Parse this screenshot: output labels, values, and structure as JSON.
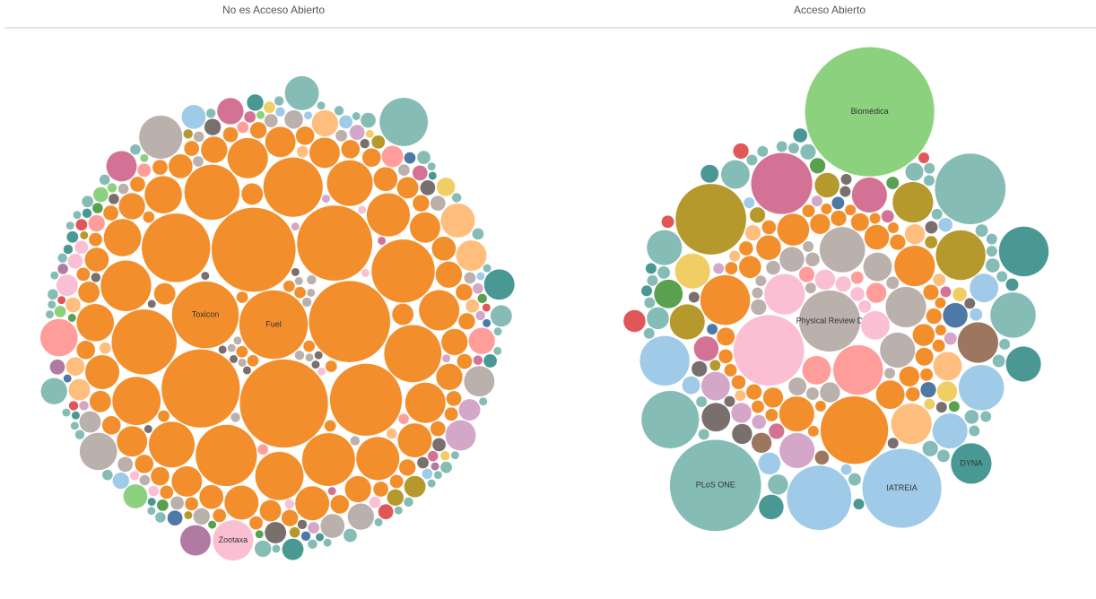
{
  "chart_data": [
    {
      "type": "bubble",
      "title": "No es Acceso Abierto",
      "series": [
        {
          "color": "#f28e2b",
          "categories": [
            "Fuel",
            "Toxicon"
          ],
          "values": [
            200,
            190
          ]
        },
        {
          "color": "#f28e2b",
          "values": [
            330,
            300,
            280,
            260,
            240,
            220,
            200,
            180,
            170,
            160,
            150,
            140,
            130,
            120,
            110,
            100,
            100,
            90,
            90,
            80,
            80,
            70,
            70,
            70,
            60,
            60,
            60,
            50,
            50,
            50,
            50,
            40,
            40,
            40,
            40,
            40,
            30,
            30,
            30,
            30,
            30,
            30,
            25,
            25,
            25,
            25,
            25,
            20,
            20,
            20,
            20,
            20,
            20,
            20,
            15,
            15,
            15,
            15,
            15,
            15,
            15,
            15,
            12,
            12,
            12,
            12,
            12,
            12,
            10,
            10,
            10,
            10,
            10,
            10,
            10,
            10,
            10,
            8,
            8,
            8,
            8,
            8,
            8,
            8,
            8,
            6,
            6,
            6,
            6,
            6,
            6,
            6,
            6,
            6,
            6
          ]
        },
        {
          "color": "#ffbe7d",
          "values": [
            50,
            40,
            30,
            20,
            15,
            10,
            8,
            6,
            6,
            5
          ]
        },
        {
          "color": "#ff9d9a",
          "values": [
            60,
            30,
            20,
            12,
            8,
            6,
            5,
            5
          ]
        },
        {
          "color": "#bab0ac",
          "values": [
            80,
            60,
            40,
            30,
            25,
            20,
            15,
            12,
            10,
            10,
            8,
            8,
            6,
            6,
            6,
            5,
            5,
            5,
            5,
            4,
            4,
            4,
            4,
            4,
            3,
            3,
            3,
            3,
            3,
            3
          ]
        },
        {
          "color": "#79706e",
          "values": [
            20,
            12,
            10,
            8,
            6,
            5,
            4,
            4,
            4,
            3,
            3,
            3,
            3,
            3,
            3,
            3,
            3,
            3
          ]
        },
        {
          "color": "#fabfd2",
          "categories": [
            "Zootaxa"
          ],
          "values": [
            70
          ]
        },
        {
          "color": "#fabfd2",
          "values": [
            20,
            10,
            8,
            6,
            5,
            4,
            4,
            3,
            3,
            3
          ]
        },
        {
          "color": "#d4a6c8",
          "values": [
            40,
            20,
            10,
            6,
            5,
            4,
            4,
            3,
            3,
            3
          ]
        },
        {
          "color": "#d37295",
          "values": [
            40,
            30,
            10,
            6,
            5,
            4,
            3,
            3
          ]
        },
        {
          "color": "#b6992d",
          "values": [
            20,
            12,
            8,
            5,
            4,
            3,
            3
          ]
        },
        {
          "color": "#59a14f",
          "values": [
            6,
            5,
            4,
            3,
            3,
            3
          ]
        },
        {
          "color": "#8cd17d",
          "values": [
            25,
            10,
            6,
            4,
            3,
            3
          ]
        },
        {
          "color": "#a0cbe8",
          "values": [
            25,
            12,
            8,
            5,
            4,
            3,
            3
          ]
        },
        {
          "color": "#4e79a7",
          "values": [
            10,
            6,
            4,
            3,
            3
          ]
        },
        {
          "color": "#e15759",
          "values": [
            10,
            6,
            4,
            3,
            3
          ]
        },
        {
          "color": "#f1ce63",
          "values": [
            15,
            6,
            4,
            3
          ]
        },
        {
          "color": "#b07aa1",
          "values": [
            40,
            10,
            5,
            3
          ]
        },
        {
          "color": "#499894",
          "values": [
            40,
            20,
            12,
            8,
            6,
            4,
            4,
            3,
            3,
            3,
            3
          ]
        },
        {
          "color": "#86bcb6",
          "values": [
            100,
            50,
            30,
            20,
            12,
            10,
            8,
            8,
            6,
            6,
            6,
            5,
            5,
            5,
            5,
            5,
            4,
            4,
            4,
            4,
            4,
            4,
            4,
            4,
            3,
            3,
            3,
            3,
            3,
            3,
            3,
            3,
            3,
            3,
            3,
            3,
            3,
            3,
            3,
            3,
            3,
            3,
            3,
            3,
            3,
            3
          ]
        }
      ]
    },
    {
      "type": "bubble",
      "title": "Acceso Abierto",
      "series": [
        {
          "color": "#bab0ac",
          "categories": [
            "Physical Review D"
          ],
          "values": [
            90
          ]
        },
        {
          "color": "#fabfd2",
          "values": [
            120,
            40,
            20,
            10,
            6,
            5,
            4
          ]
        },
        {
          "color": "#ff9d9a",
          "values": [
            60,
            20,
            10,
            6,
            4
          ]
        },
        {
          "color": "#bab0ac",
          "values": [
            50,
            40,
            30,
            20,
            15,
            10,
            8,
            6,
            5,
            5,
            4,
            4,
            3,
            3,
            3,
            3,
            3
          ]
        },
        {
          "color": "#f28e2b",
          "values": [
            110,
            60,
            40,
            30,
            25,
            20,
            15,
            15,
            12,
            12,
            10,
            10,
            10,
            8,
            8,
            8,
            6,
            6,
            6,
            6,
            6,
            5,
            5,
            5,
            5,
            5,
            4,
            4,
            4,
            4,
            4,
            4,
            4,
            3,
            3,
            3,
            3,
            3,
            3,
            3,
            3
          ]
        },
        {
          "color": "#ffbe7d",
          "values": [
            40,
            20,
            10,
            6,
            4,
            3,
            3
          ]
        },
        {
          "color": "#4e79a7",
          "values": [
            15,
            6,
            4,
            3
          ]
        },
        {
          "color": "#d37295",
          "values": [
            90,
            30,
            15,
            6,
            4,
            3
          ]
        },
        {
          "color": "#d4a6c8",
          "values": [
            30,
            20,
            10,
            5,
            4,
            3,
            3
          ]
        },
        {
          "color": "#b6992d",
          "values": [
            120,
            60,
            40,
            30,
            15,
            6,
            4,
            3
          ]
        },
        {
          "color": "#f1ce63",
          "values": [
            30,
            10,
            5,
            3
          ]
        },
        {
          "color": "#9d7660",
          "values": [
            40,
            10,
            5
          ]
        },
        {
          "color": "#79706e",
          "values": [
            20,
            10,
            6,
            4,
            3,
            3,
            3,
            3,
            3,
            3,
            3
          ]
        },
        {
          "color": "#a0cbe8",
          "categories": [
            "IATREIA"
          ],
          "values": [
            150
          ]
        },
        {
          "color": "#a0cbe8",
          "values": [
            100,
            60,
            50,
            30,
            20,
            12,
            8,
            5,
            4,
            3,
            3
          ]
        },
        {
          "color": "#8cd17d",
          "categories": [
            "Biomédica"
          ],
          "values": [
            400
          ]
        },
        {
          "color": "#59a14f",
          "values": [
            20,
            6,
            4,
            3
          ]
        },
        {
          "color": "#86bcb6",
          "categories": [
            "PLoS ONE"
          ],
          "values": [
            200
          ]
        },
        {
          "color": "#86bcb6",
          "values": [
            120,
            80,
            50,
            30,
            20,
            12,
            10,
            8,
            6,
            6,
            5,
            5,
            4,
            4,
            4,
            4,
            4,
            3,
            3,
            3,
            3,
            3,
            3,
            3,
            3,
            3,
            3,
            3,
            3,
            3,
            3,
            3,
            3,
            3,
            3
          ]
        },
        {
          "color": "#499894",
          "categories": [
            "DYNA"
          ],
          "values": [
            40
          ]
        },
        {
          "color": "#499894",
          "values": [
            60,
            30,
            15,
            8,
            5,
            4,
            3,
            3,
            3
          ]
        },
        {
          "color": "#e15759",
          "values": [
            12,
            6,
            4,
            3
          ]
        }
      ]
    }
  ]
}
